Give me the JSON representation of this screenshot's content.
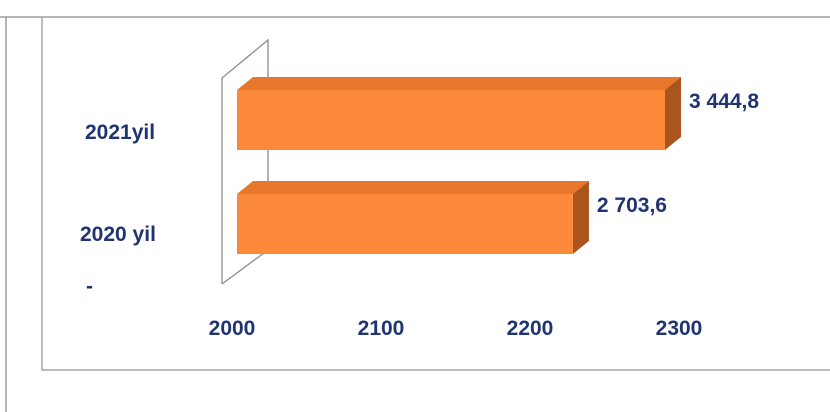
{
  "chart_data": {
    "type": "bar",
    "orientation": "horizontal",
    "three_d": true,
    "categories": [
      "2021yil",
      "2020 yil"
    ],
    "values": [
      3444.8,
      2703.6
    ],
    "data_labels": [
      "3 444,8",
      "2 703,6"
    ],
    "x_ticks": [
      "2000",
      "2100",
      "2200",
      "2300"
    ],
    "axis_range_labels": [
      2000,
      2300
    ],
    "stray_axis_label": "-",
    "grid": false,
    "legend": "none",
    "colors": {
      "bar_front": "#fd8a3a",
      "bar_top": "#e8772b",
      "bar_side": "#a9551d",
      "label_text": "#1f3470",
      "frame": "#a6a6a6",
      "axis": "#8c8c8c"
    }
  }
}
